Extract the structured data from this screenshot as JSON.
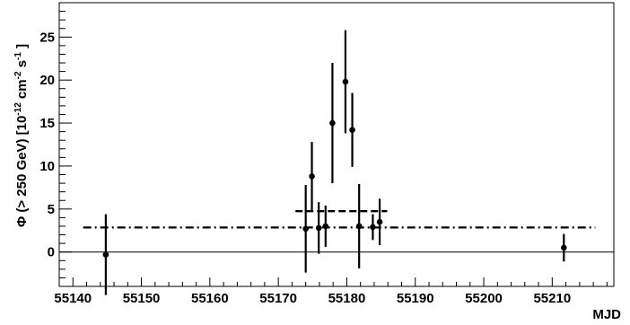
{
  "chart_data": {
    "type": "scatter",
    "title": "",
    "xlabel": "MJD",
    "ylabel": "Φ (> 250 GeV) [10",
    "ylabel_exp1": "-12",
    "ylabel_mid": " cm",
    "ylabel_exp2": "-2",
    "ylabel_s": " s",
    "ylabel_exp3": "-1",
    "ylabel_end": " ]",
    "xlim": [
      55138,
      55219
    ],
    "ylim": [
      -4,
      29
    ],
    "x_ticks": [
      55150,
      55160,
      55170,
      55180,
      55190,
      55200,
      55210
    ],
    "x_tick_labels": [
      "55150",
      "55160",
      "55170",
      "55180",
      "55190",
      "55200",
      "55210"
    ],
    "x_first_label": "55140",
    "y_ticks": [
      0,
      5,
      10,
      15,
      20,
      25
    ],
    "y_tick_labels": [
      "0",
      "5",
      "10",
      "15",
      "20",
      "25"
    ],
    "grid": false,
    "legend": "none",
    "points": [
      {
        "x": 55144.8,
        "y": -0.3,
        "err": 4.7
      },
      {
        "x": 55174.0,
        "y": 2.7,
        "err": 5.1
      },
      {
        "x": 55174.9,
        "y": 8.8,
        "err": 4.0
      },
      {
        "x": 55175.9,
        "y": 2.8,
        "err": 3.0
      },
      {
        "x": 55176.9,
        "y": 3.0,
        "err": 2.4
      },
      {
        "x": 55177.9,
        "y": 15.0,
        "err": 7.0
      },
      {
        "x": 55179.8,
        "y": 19.8,
        "err": 6.0
      },
      {
        "x": 55180.8,
        "y": 14.2,
        "err": 4.3
      },
      {
        "x": 55181.8,
        "y": 3.0,
        "err": 4.9
      },
      {
        "x": 55183.8,
        "y": 2.9,
        "err": 1.5
      },
      {
        "x": 55184.8,
        "y": 3.5,
        "err": 2.7
      },
      {
        "x": 55211.7,
        "y": 0.5,
        "err": 1.6
      }
    ],
    "reference_lines": [
      {
        "style": "dash-dot",
        "y": 2.85,
        "x_start": 55141.5,
        "x_end": 55216.3
      },
      {
        "style": "dashed",
        "y": 4.75,
        "x_start": 55172.5,
        "x_end": 55185.9
      },
      {
        "style": "solid",
        "y": 0,
        "x_start": 55138,
        "x_end": 55219
      }
    ],
    "colors": {
      "marker": "#000000",
      "line": "#000000"
    }
  }
}
